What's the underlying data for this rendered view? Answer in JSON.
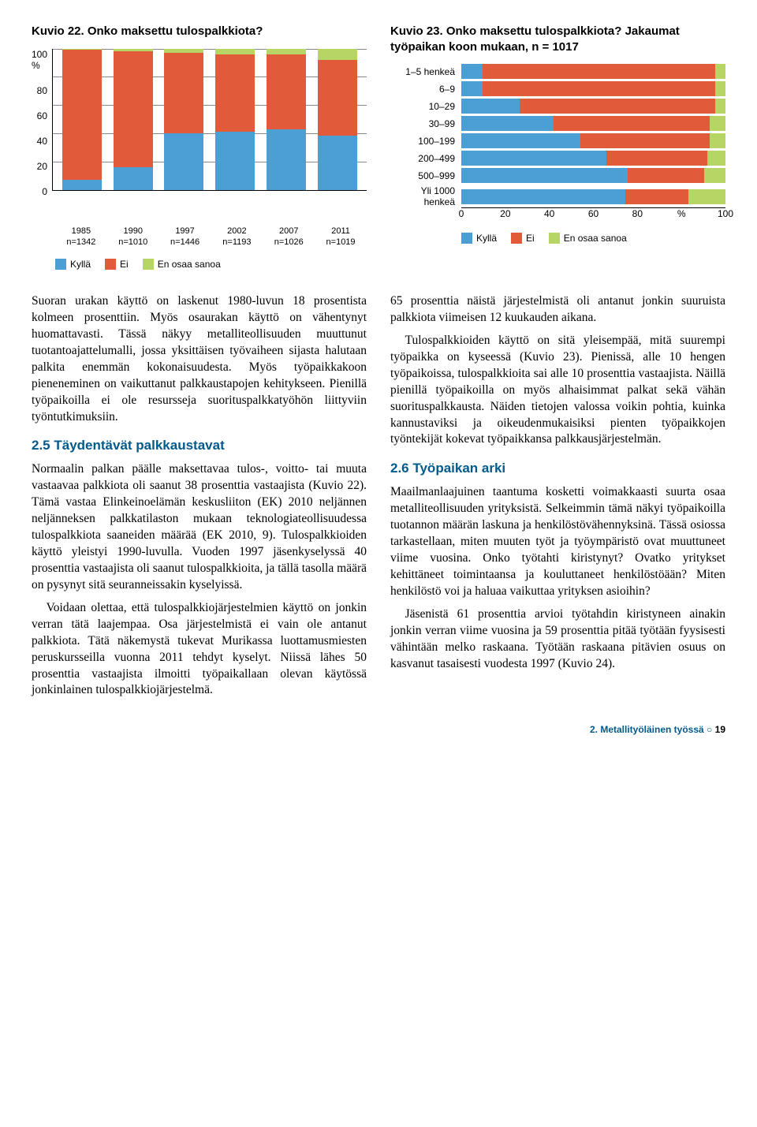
{
  "colors": {
    "yes": "#4b9fd5",
    "no": "#e15a3a",
    "unk": "#b6d564",
    "heading": "#005a8c"
  },
  "chart22": {
    "title": "Kuvio 22. Onko maksettu tulospalkkiota?",
    "ylabel_suffix": "%",
    "y_ticks": [
      "100",
      "80",
      "60",
      "40",
      "20",
      "0"
    ],
    "categories": [
      {
        "year": "1985",
        "n": "n=1342",
        "yes": 7,
        "no": 92,
        "unk": 1
      },
      {
        "year": "1990",
        "n": "n=1010",
        "yes": 16,
        "no": 82,
        "unk": 2
      },
      {
        "year": "1997",
        "n": "n=1446",
        "yes": 40,
        "no": 57,
        "unk": 3
      },
      {
        "year": "2002",
        "n": "n=1193",
        "yes": 41,
        "no": 55,
        "unk": 4
      },
      {
        "year": "2007",
        "n": "n=1026",
        "yes": 43,
        "no": 53,
        "unk": 4
      },
      {
        "year": "2011",
        "n": "n=1019",
        "yes": 38,
        "no": 54,
        "unk": 8
      }
    ],
    "legend": {
      "yes": "Kyllä",
      "no": "Ei",
      "unk": "En osaa sanoa"
    }
  },
  "chart23": {
    "title": "Kuvio 23. Onko maksettu tulospalkkiota? Jakaumat työpaikan koon mukaan, n = 1017",
    "x_ticks": [
      "0",
      "20",
      "40",
      "60",
      "80",
      "%",
      "100"
    ],
    "rows": [
      {
        "label": "1–5 henkeä",
        "yes": 8,
        "no": 88,
        "unk": 4
      },
      {
        "label": "6–9",
        "yes": 8,
        "no": 88,
        "unk": 4
      },
      {
        "label": "10–29",
        "yes": 22,
        "no": 74,
        "unk": 4
      },
      {
        "label": "30–99",
        "yes": 35,
        "no": 59,
        "unk": 6
      },
      {
        "label": "100–199",
        "yes": 45,
        "no": 49,
        "unk": 6
      },
      {
        "label": "200–499",
        "yes": 55,
        "no": 38,
        "unk": 7
      },
      {
        "label": "500–999",
        "yes": 63,
        "no": 29,
        "unk": 8
      },
      {
        "label": "Yli 1000 henkeä",
        "yes": 62,
        "no": 24,
        "unk": 14
      }
    ],
    "legend": {
      "yes": "Kyllä",
      "no": "Ei",
      "unk": "En osaa sanoa"
    }
  },
  "body": {
    "left": [
      "Suoran urakan käyttö on laskenut 1980-luvun 18 prosentista kolmeen prosenttiin. Myös osaurakan käyttö on vähentynyt huomattavasti. Tässä näkyy metalliteollisuuden muuttunut tuotantoajattelumalli, jossa yksittäisen työvaiheen sijasta halutaan palkita enemmän kokonaisuudesta. Myös työpaikkakoon pieneneminen on vaikuttanut palkkaustapojen kehitykseen. Pienillä työpaikoilla ei ole resursseja suorituspalkkatyöhön liittyviin työntutkimuksiin."
    ],
    "h25": "2.5 Täydentävät palkkaustavat",
    "left2": [
      "Normaalin palkan päälle maksettavaa tulos-, voitto- tai muuta vastaavaa palkkiota oli saanut 38 prosenttia vastaajista (Kuvio 22). Tämä vastaa Elinkeinoelämän keskusliiton (EK) 2010 neljännen neljänneksen palkkatilaston mukaan teknologiateollisuudessa tulospalkkiota saaneiden määrää (EK 2010, 9). Tulospalkkioiden käyttö yleistyi 1990-luvulla. Vuoden 1997 jäsenkyselyssä 40 prosenttia vastaajista oli saanut tulospalkkioita, ja tällä tasolla määrä on pysynyt sitä seuranneissakin kyselyissä.",
      "Voidaan olettaa, että tulospalkkiojärjestelmien käyttö on jonkin verran tätä laajempaa. Osa järjestelmistä ei vain ole antanut palkkiota. Tätä näkemystä tukevat Murikassa luottamusmiesten peruskursseilla vuonna 2011 tehdyt kyselyt. Niissä lähes 50 prosenttia vastaajista ilmoitti työpaikallaan olevan käytössä jonkinlainen tulospalkkiojärjestelmä."
    ],
    "right": [
      "65 prosenttia näistä järjestelmistä oli antanut jonkin suuruista palkkiota viimeisen 12 kuukauden aikana.",
      "Tulospalkkioiden käyttö on sitä yleisempää, mitä suurempi työpaikka on kyseessä (Kuvio 23). Pienissä, alle 10 hengen työpaikoissa, tulospalkkioita sai alle 10 prosenttia vastaajista. Näillä pienillä työpaikoilla on myös alhaisimmat palkat sekä vähän suorituspalkkausta. Näiden tietojen valossa voikin pohtia, kuinka kannustaviksi ja oikeudenmukaisiksi pienten työpaikkojen työntekijät kokevat työpaikkansa palkkausjärjestelmän."
    ],
    "h26": "2.6 Työpaikan arki",
    "right2": [
      "Maailmanlaajuinen taantuma kosketti voimakkaasti suurta osaa metalliteollisuuden yrityksistä. Selkeimmin tämä näkyi työpaikoilla tuotannon määrän laskuna ja henkilöstövähennyksinä. Tässä osiossa tarkastellaan, miten muuten työt ja työympäristö ovat muuttuneet viime vuosina. Onko työtahti kiristynyt? Ovatko yritykset kehittäneet toimintaansa ja kouluttaneet henkilöstöään? Miten henkilöstö voi ja haluaa vaikuttaa yrityksen asioihin?",
      "Jäsenistä 61 prosenttia arvioi työtahdin kiristyneen ainakin jonkin verran viime vuosina ja 59 prosenttia pitää työtään fyysisesti vähintään melko raskaana. Työtään raskaana pitävien osuus on kasvanut tasaisesti vuodesta 1997 (Kuvio 24)."
    ]
  },
  "footer": {
    "section": "2. Metallityöläinen työssä",
    "sep": "○",
    "page": "19"
  }
}
